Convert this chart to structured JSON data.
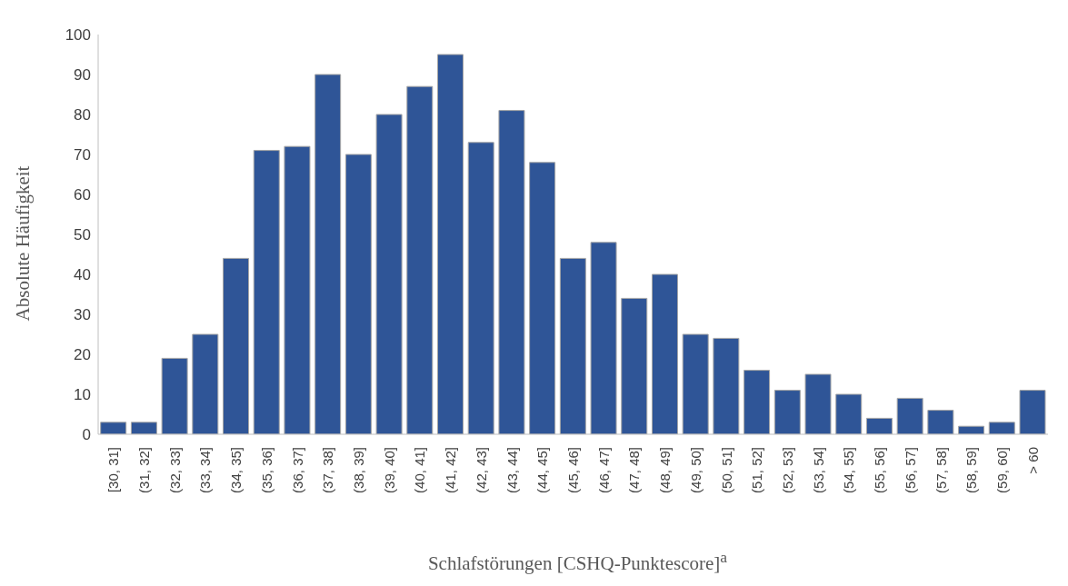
{
  "chart_data": {
    "type": "bar",
    "xlabel": "Schlafstörungen [CSHQ-Punktescore]$^{a}$",
    "ylabel": "Absolute Häufigkeit",
    "categories": [
      "[30, 31]",
      "(31, 32]",
      "(32, 33]",
      "(33, 34]",
      "(34, 35]",
      "(35, 36]",
      "(36, 37]",
      "(37, 38]",
      "(38, 39]",
      "(39, 40]",
      "(40, 41]",
      "(41, 42]",
      "(42, 43]",
      "(43, 44]",
      "(44, 45]",
      "(45, 46]",
      "(46, 47]",
      "(47, 48]",
      "(48, 49]",
      "(49, 50]",
      "(50, 51]",
      "(51, 52]",
      "(52, 53]",
      "(53, 54]",
      "(54, 55]",
      "(55, 56]",
      "(56, 57]",
      "(57, 58]",
      "(58, 59]",
      "(59, 60]",
      "> 60"
    ],
    "values": [
      3,
      3,
      19,
      25,
      44,
      71,
      72,
      90,
      70,
      80,
      87,
      95,
      73,
      81,
      68,
      44,
      48,
      34,
      40,
      25,
      24,
      16,
      11,
      15,
      10,
      4,
      9,
      6,
      2,
      3,
      11
    ],
    "color": "#2f5597",
    "ylim": [
      0,
      100
    ],
    "yticks": [
      0,
      10,
      20,
      30,
      40,
      50,
      60,
      70,
      80,
      90,
      100
    ],
    "grid": false,
    "legend": false
  }
}
